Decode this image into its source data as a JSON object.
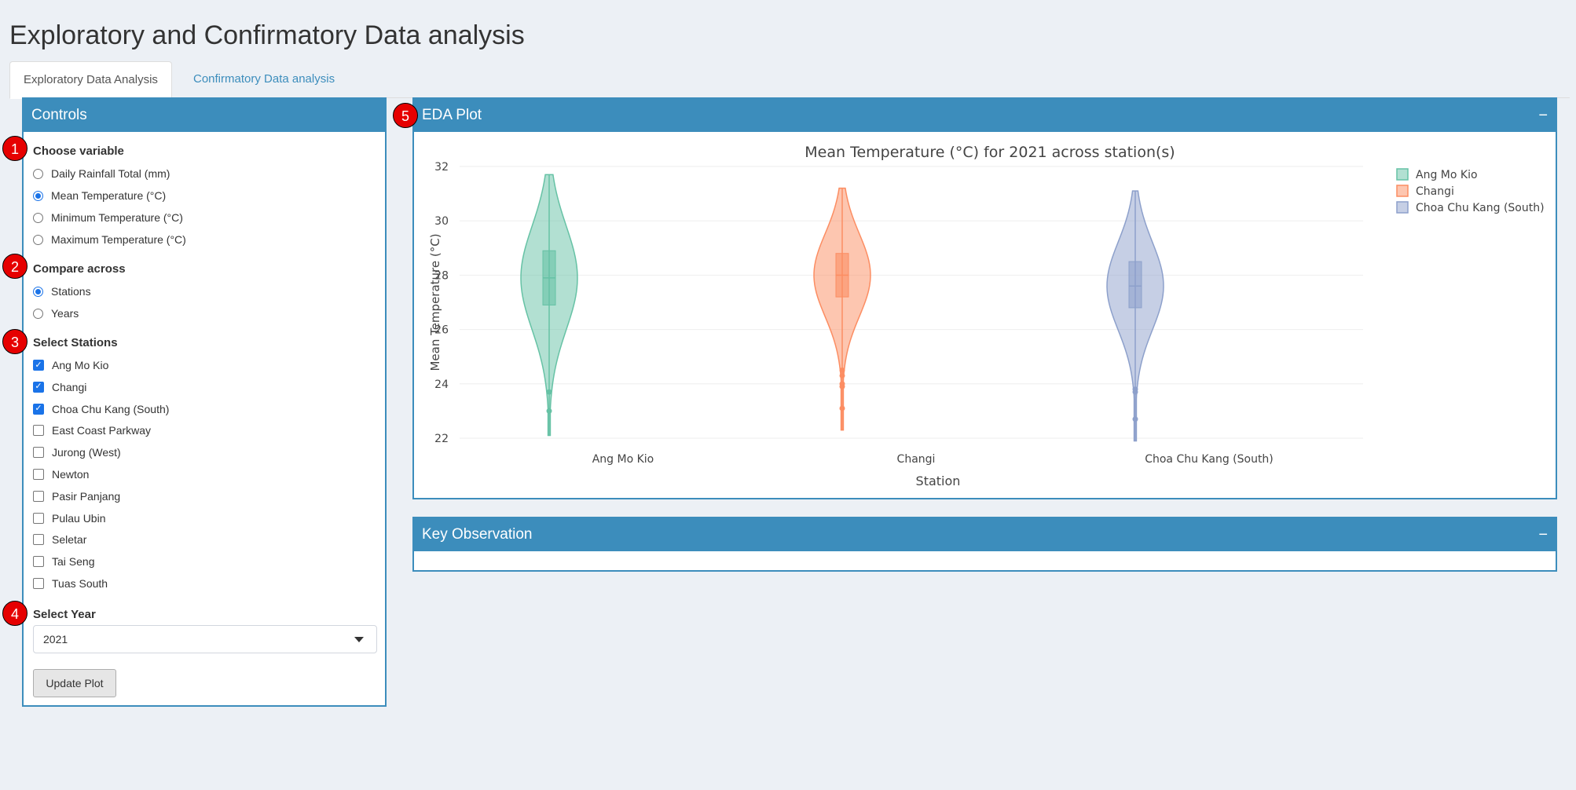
{
  "app": {
    "title": "Exploratory and Confirmatory Data analysis"
  },
  "tabs": [
    {
      "label": "Exploratory Data Analysis",
      "active": true
    },
    {
      "label": "Confirmatory Data analysis",
      "active": false
    }
  ],
  "controls": {
    "title": "Controls",
    "variable": {
      "label": "Choose variable",
      "options": [
        "Daily Rainfall Total (mm)",
        "Mean Temperature (°C)",
        "Minimum Temperature (°C)",
        "Maximum Temperature (°C)"
      ],
      "selected": 1
    },
    "compare": {
      "label": "Compare across",
      "options": [
        "Stations",
        "Years"
      ],
      "selected": 0
    },
    "stations": {
      "label": "Select Stations",
      "options": [
        {
          "label": "Ang Mo Kio",
          "checked": true
        },
        {
          "label": "Changi",
          "checked": true
        },
        {
          "label": "Choa Chu Kang (South)",
          "checked": true
        },
        {
          "label": "East Coast Parkway",
          "checked": false
        },
        {
          "label": "Jurong (West)",
          "checked": false
        },
        {
          "label": "Newton",
          "checked": false
        },
        {
          "label": "Pasir Panjang",
          "checked": false
        },
        {
          "label": "Pulau Ubin",
          "checked": false
        },
        {
          "label": "Seletar",
          "checked": false
        },
        {
          "label": "Tai Seng",
          "checked": false
        },
        {
          "label": "Tuas South",
          "checked": false
        }
      ]
    },
    "year": {
      "label": "Select Year",
      "value": "2021"
    },
    "update_button": "Update Plot"
  },
  "badges": [
    "1",
    "2",
    "3",
    "4",
    "5"
  ],
  "eda_box": {
    "title": "EDA Plot",
    "collapse": "−"
  },
  "keyobs_box": {
    "title": "Key Observation",
    "collapse": "−"
  },
  "colors": {
    "accent": "#3c8dbc",
    "ang_mo_kio": "#66c2a5",
    "changi": "#fc8d62",
    "choa_chu_kang": "#8da0cb"
  },
  "chart_data": {
    "type": "violin",
    "title": "Mean Temperature (°C) for 2021 across station(s)",
    "xlabel": "Station",
    "ylabel": "Mean Temperature (°C)",
    "ylim": [
      22,
      32
    ],
    "yticks": [
      22,
      24,
      26,
      28,
      30,
      32
    ],
    "grid": true,
    "legend": "top-right",
    "series": [
      {
        "name": "Ang Mo Kio",
        "color": "#66c2a5",
        "min": 22.1,
        "max": 31.7,
        "q1": 26.9,
        "median": 27.9,
        "q3": 28.9,
        "outliers": [
          23.7,
          23.0
        ]
      },
      {
        "name": "Changi",
        "color": "#fc8d62",
        "min": 22.3,
        "max": 31.2,
        "q1": 27.2,
        "median": 28.0,
        "q3": 28.8,
        "outliers": [
          24.5,
          24.3,
          24.0,
          23.9,
          23.1
        ]
      },
      {
        "name": "Choa Chu Kang (South)",
        "color": "#8da0cb",
        "min": 21.9,
        "max": 31.1,
        "q1": 26.8,
        "median": 27.6,
        "q3": 28.5,
        "outliers": [
          23.8,
          23.7,
          22.7
        ]
      }
    ]
  }
}
